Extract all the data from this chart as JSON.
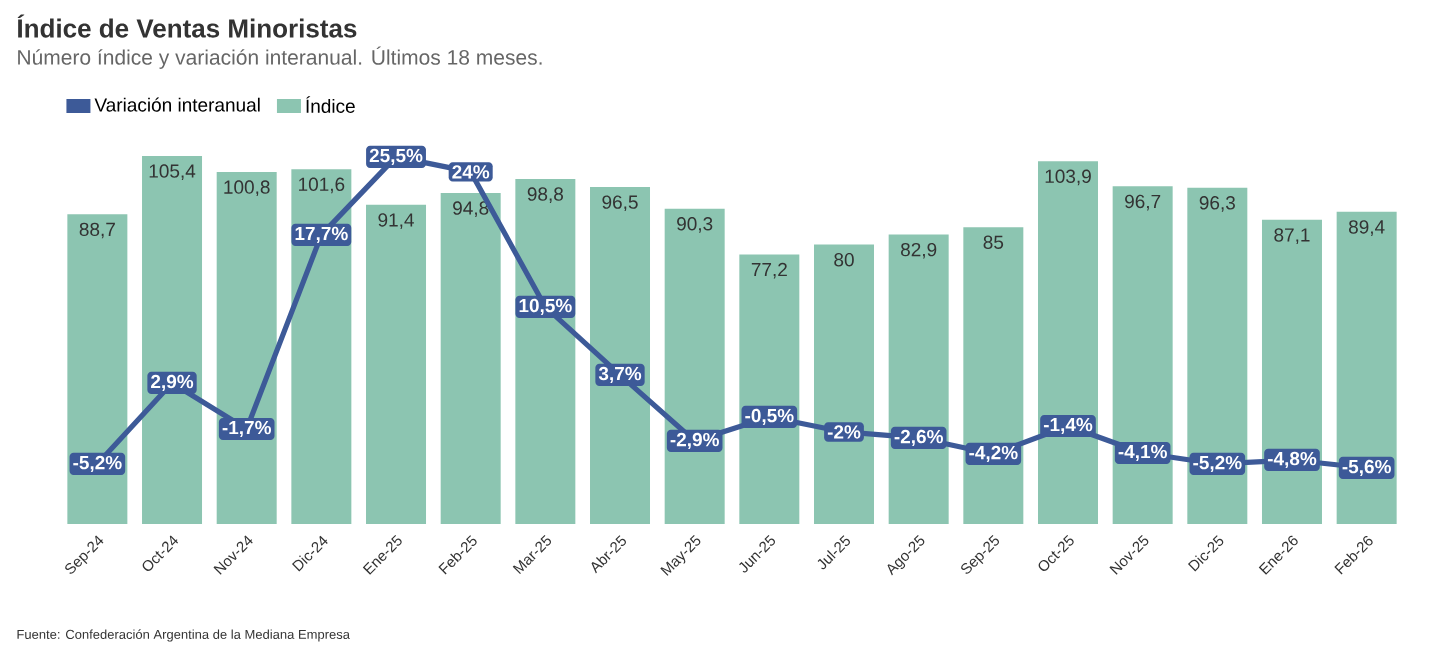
{
  "chart_data": {
    "type": "bar",
    "title": "Índice de Ventas Minoristas",
    "subtitle": "Número índice y variación interanual. Últimos 18 meses.",
    "categories": [
      "Sep-24",
      "Oct-24",
      "Nov-24",
      "Dic-24",
      "Ene-25",
      "Feb-25",
      "Mar-25",
      "Abr-25",
      "May-25",
      "Jun-25",
      "Jul-25",
      "Ago-25",
      "Sep-25",
      "Oct-25",
      "Nov-25",
      "Dic-25",
      "Ene-26",
      "Feb-26"
    ],
    "series": [
      {
        "name": "Variación interanual",
        "type": "line",
        "axis": "y2",
        "marker": "square",
        "color": "#3d5a98",
        "values": [
          -5.2,
          2.9,
          -1.7,
          17.7,
          25.5,
          24,
          10.5,
          3.7,
          -2.9,
          -0.5,
          -2,
          -2.6,
          -4.2,
          -1.4,
          -4.1,
          -5.2,
          -4.8,
          -5.6
        ],
        "value_labels": [
          "-5,2%",
          "2,9%",
          "-1,7%",
          "17,7%",
          "25,5%",
          "24%",
          "10,5%",
          "3,7%",
          "-2,9%",
          "-0,5%",
          "-2%",
          "-2,6%",
          "-4,2%",
          "-1,4%",
          "-4,1%",
          "-5,2%",
          "-4,8%",
          "-5,6%"
        ]
      },
      {
        "name": "Índice",
        "color": "#8cc5b1",
        "values": [
          88.7,
          105.4,
          100.8,
          101.6,
          91.4,
          94.8,
          98.8,
          96.5,
          90.3,
          77.2,
          80,
          82.9,
          85,
          103.9,
          96.7,
          96.3,
          87.1,
          89.4
        ],
        "value_labels": [
          "88,7",
          "105,4",
          "100,8",
          "101,6",
          "91,4",
          "94,8",
          "98,8",
          "96,5",
          "90,3",
          "77,2",
          "80",
          "82,9",
          "85",
          "103,9",
          "96,7",
          "96,3",
          "87,1",
          "89,4"
        ]
      }
    ],
    "tick_labels": "x",
    "legend": "top left",
    "annotations": [
      "Fuente: Confederación Argentina de la Mediana Empresa"
    ]
  }
}
